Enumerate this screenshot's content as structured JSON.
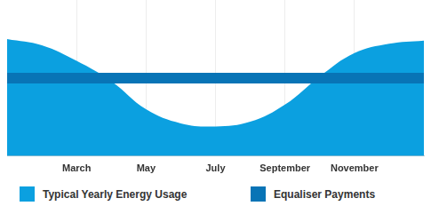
{
  "chart_data": {
    "type": "line",
    "categories": [
      null,
      null,
      "March",
      null,
      "May",
      null,
      "July",
      null,
      "September",
      null,
      "November",
      null,
      null
    ],
    "series": [
      {
        "name": "Typical Yearly Energy Usage",
        "type": "area",
        "color": "#0ba0e0",
        "values": [
          75,
          71,
          61,
          48,
          30,
          21,
          19,
          22,
          33,
          51,
          66,
          72,
          74
        ]
      },
      {
        "name": "Equaliser Payments",
        "type": "line",
        "color": "#0874b6",
        "values": [
          50,
          50,
          50,
          50,
          50,
          50,
          50,
          50,
          50,
          50,
          50,
          50,
          50
        ]
      }
    ],
    "ylim": [
      0,
      100
    ],
    "grid": true,
    "legend": "bottom",
    "tick_labels": "x"
  }
}
